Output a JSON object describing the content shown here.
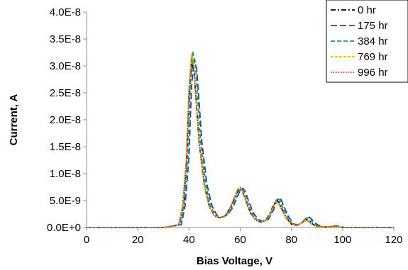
{
  "chart_data": {
    "type": "line",
    "title": "",
    "xlabel": "Bias Voltage, V",
    "ylabel": "Current, A",
    "xlim": [
      0,
      120
    ],
    "ylim": [
      0,
      4e-08
    ],
    "xticks": [
      "0",
      "20",
      "40",
      "60",
      "80",
      "100",
      "120"
    ],
    "yticks": [
      "0.0E+0",
      "5.0E-9",
      "1.0E-8",
      "1.5E-8",
      "2.0E-8",
      "2.5E-8",
      "3.0E-8",
      "3.5E-8",
      "4.0E-8"
    ],
    "grid": false,
    "legend_position": "top-right",
    "series": [
      {
        "name": "0 hr",
        "color": "#000000",
        "dash": "dashdot",
        "x": [
          0,
          30,
          36,
          38,
          39,
          40,
          41,
          42,
          43,
          44,
          46,
          48,
          50,
          52,
          54,
          56,
          58,
          59,
          60,
          61,
          62,
          64,
          66,
          68,
          70,
          72,
          73,
          74,
          75,
          76,
          78,
          80,
          82,
          84,
          85,
          86,
          87,
          88,
          90,
          92,
          94,
          96,
          98,
          100,
          110,
          120
        ],
        "y": [
          0,
          0,
          5e-10,
          4e-09,
          1.2e-08,
          2.4e-08,
          3.05e-08,
          2.9e-08,
          2.2e-08,
          1.55e-08,
          7.8e-09,
          3.8e-09,
          2.1e-09,
          1.8e-09,
          2.2e-09,
          3.5e-09,
          5.7e-09,
          6.8e-09,
          7.2e-09,
          6.6e-09,
          5.2e-09,
          2.7e-09,
          1.4e-09,
          1e-09,
          1.4e-09,
          3e-09,
          4.2e-09,
          5e-09,
          4.8e-09,
          3.8e-09,
          1.8e-09,
          6e-10,
          4e-10,
          9e-10,
          1.4e-09,
          1.5e-09,
          1.2e-09,
          7e-10,
          2e-10,
          1e-10,
          1e-10,
          2e-10,
          1e-10,
          0,
          0,
          0
        ]
      },
      {
        "name": "175 hr",
        "color": "#1f3fd6",
        "dash": "longdash",
        "x": [
          0,
          30,
          37,
          38.5,
          40,
          41,
          42,
          43,
          44,
          45,
          47,
          49,
          51,
          53,
          55,
          57,
          59,
          60,
          61,
          62,
          63,
          65,
          67,
          69,
          71,
          73,
          74,
          75,
          76,
          77,
          79,
          81,
          83,
          85,
          86,
          87,
          88,
          89,
          91,
          93,
          95,
          97,
          99,
          101,
          110,
          120
        ],
        "y": [
          0,
          0,
          5e-10,
          4e-09,
          1.3e-08,
          2.6e-08,
          3.12e-08,
          2.95e-08,
          2.3e-08,
          1.6e-08,
          8e-09,
          4e-09,
          2.2e-09,
          1.9e-09,
          2.3e-09,
          3.6e-09,
          5.8e-09,
          6.9e-09,
          7.3e-09,
          6.7e-09,
          5.3e-09,
          2.8e-09,
          1.5e-09,
          1.1e-09,
          1.5e-09,
          3.2e-09,
          4.6e-09,
          5.5e-09,
          5.2e-09,
          4e-09,
          1.9e-09,
          6e-10,
          5e-10,
          1.2e-09,
          1.8e-09,
          1.9e-09,
          1.5e-09,
          9e-10,
          3e-10,
          1e-10,
          1e-10,
          3e-10,
          2e-10,
          0,
          0,
          0
        ]
      },
      {
        "name": "384 hr",
        "color": "#18a05a",
        "dash": "dash",
        "x": [
          0,
          30,
          36.5,
          38,
          39.5,
          40.5,
          41.5,
          42.5,
          43.5,
          44.5,
          46.5,
          48.5,
          50.5,
          52.5,
          54.5,
          56.5,
          58.5,
          59.5,
          60.5,
          61.5,
          62.5,
          64.5,
          66.5,
          68.5,
          70.5,
          72.5,
          73.5,
          74.5,
          75.5,
          76.5,
          78.5,
          80.5,
          82.5,
          84.5,
          85.5,
          86.5,
          87.5,
          88.5,
          90.5,
          92.5,
          94.5,
          96.5,
          98.5,
          100.5,
          110,
          120
        ],
        "y": [
          0,
          0,
          5e-10,
          4e-09,
          1.3e-08,
          2.6e-08,
          3.27e-08,
          3.05e-08,
          2.3e-08,
          1.6e-08,
          8e-09,
          3.9e-09,
          2.1e-09,
          1.8e-09,
          2.2e-09,
          3.5e-09,
          5.7e-09,
          6.8e-09,
          7.2e-09,
          6.6e-09,
          5.2e-09,
          2.7e-09,
          1.4e-09,
          1e-09,
          1.4e-09,
          3.1e-09,
          4.5e-09,
          5.4e-09,
          5.1e-09,
          3.9e-09,
          1.8e-09,
          6e-10,
          4e-10,
          1.1e-09,
          1.7e-09,
          1.8e-09,
          1.4e-09,
          8e-10,
          2e-10,
          1e-10,
          1e-10,
          2e-10,
          1e-10,
          0,
          0,
          0
        ]
      },
      {
        "name": "769 hr",
        "color": "#f5b800",
        "dash": "shortdash",
        "x": [
          0,
          30,
          36,
          37.5,
          39,
          40,
          41,
          42,
          43,
          44,
          46,
          48,
          50,
          52,
          54,
          56,
          58,
          59,
          60,
          61,
          62,
          64,
          66,
          68,
          70,
          72,
          73,
          74,
          75,
          76,
          78,
          80,
          82,
          84,
          85,
          86,
          87,
          88,
          90,
          92,
          94,
          96,
          98,
          100,
          110,
          120
        ],
        "y": [
          0,
          0,
          5e-10,
          4e-09,
          1.3e-08,
          2.6e-08,
          3.22e-08,
          3e-08,
          2.25e-08,
          1.58e-08,
          7.9e-09,
          3.8e-09,
          2.1e-09,
          1.8e-09,
          2.2e-09,
          3.6e-09,
          6e-09,
          7.1e-09,
          7.5e-09,
          6.8e-09,
          5.3e-09,
          2.7e-09,
          1.4e-09,
          1e-09,
          1.3e-09,
          2.8e-09,
          4e-09,
          4.8e-09,
          4.6e-09,
          3.6e-09,
          1.7e-09,
          6e-10,
          4e-10,
          9e-10,
          1.3e-09,
          1.4e-09,
          1.1e-09,
          6e-10,
          2e-10,
          1e-10,
          1e-10,
          2e-10,
          1e-10,
          0,
          0,
          0
        ]
      },
      {
        "name": "996 hr",
        "color": "#c0392b",
        "dash": "dot",
        "x": [
          0,
          30,
          36,
          37.5,
          39,
          40,
          41,
          42,
          43,
          44,
          46,
          48,
          50,
          52,
          54,
          56,
          58,
          59,
          60,
          61,
          62,
          64,
          66,
          68,
          70,
          72,
          73,
          74,
          75,
          76,
          78,
          80,
          82,
          84,
          85,
          86,
          87,
          88,
          90,
          92,
          94,
          96,
          98,
          100,
          110,
          120
        ],
        "y": [
          0,
          0,
          5e-10,
          4e-09,
          1.25e-08,
          2.55e-08,
          3.15e-08,
          2.95e-08,
          2.2e-08,
          1.55e-08,
          7.8e-09,
          3.8e-09,
          2.1e-09,
          1.8e-09,
          2.2e-09,
          3.6e-09,
          5.9e-09,
          7e-09,
          7.4e-09,
          6.7e-09,
          5.2e-09,
          2.7e-09,
          1.4e-09,
          1e-09,
          1.3e-09,
          2.8e-09,
          4e-09,
          4.7e-09,
          4.5e-09,
          3.5e-09,
          1.6e-09,
          6e-10,
          4e-10,
          8e-10,
          1.2e-09,
          1.3e-09,
          1e-09,
          6e-10,
          2e-10,
          1e-10,
          1e-10,
          2e-10,
          1e-10,
          0,
          0,
          0
        ]
      }
    ]
  }
}
